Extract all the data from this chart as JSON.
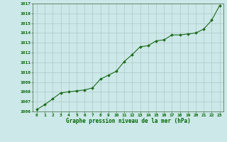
{
  "x": [
    0,
    1,
    2,
    3,
    4,
    5,
    6,
    7,
    8,
    9,
    10,
    11,
    12,
    13,
    14,
    15,
    16,
    17,
    18,
    19,
    20,
    21,
    22,
    23
  ],
  "y": [
    1006.2,
    1006.7,
    1007.3,
    1007.9,
    1008.0,
    1008.1,
    1008.2,
    1008.4,
    1009.3,
    1009.7,
    1010.1,
    1011.1,
    1011.8,
    1012.6,
    1012.7,
    1013.2,
    1013.3,
    1013.8,
    1013.8,
    1013.9,
    1014.0,
    1014.4,
    1015.3,
    1016.8
  ],
  "line_color": "#1a6b1a",
  "marker": "D",
  "marker_size": 2.0,
  "bg_color": "#cce8e8",
  "grid_color": "#b0c8c8",
  "xlabel": "Graphe pression niveau de la mer (hPa)",
  "xlabel_color": "#006600",
  "tick_color": "#006600",
  "ylim": [
    1006,
    1017
  ],
  "xlim": [
    -0.5,
    23.5
  ],
  "yticks": [
    1006,
    1007,
    1008,
    1009,
    1010,
    1011,
    1012,
    1013,
    1014,
    1015,
    1016,
    1017
  ],
  "xticks": [
    0,
    1,
    2,
    3,
    4,
    5,
    6,
    7,
    8,
    9,
    10,
    11,
    12,
    13,
    14,
    15,
    16,
    17,
    18,
    19,
    20,
    21,
    22,
    23
  ],
  "spine_color": "#446644"
}
